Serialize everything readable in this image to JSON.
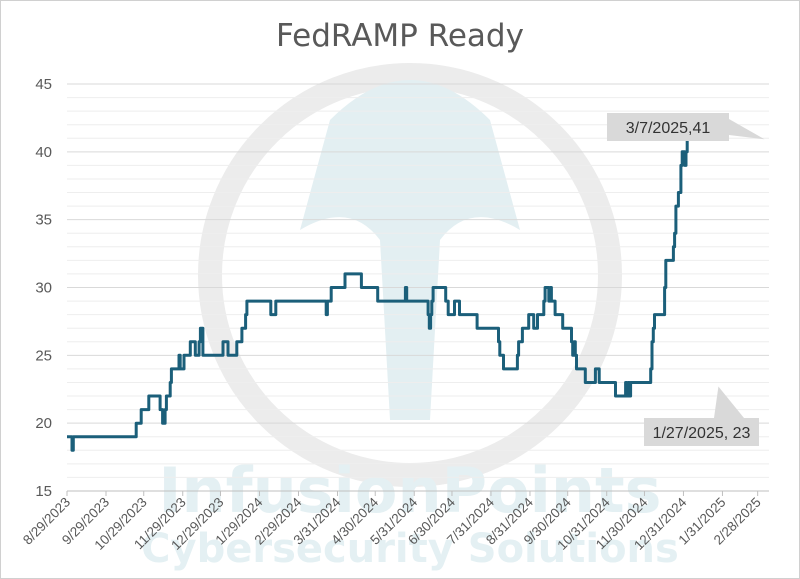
{
  "chart_data": {
    "type": "line",
    "title": "FedRAMP Ready",
    "xlabel": "",
    "ylabel": "",
    "ylim": [
      15,
      45
    ],
    "y_ticks": [
      "15",
      "20",
      "25",
      "30",
      "35",
      "40",
      "45"
    ],
    "x_range": [
      "2023-08-29",
      "2025-03-09"
    ],
    "x_ticks": [
      "8/29/2023",
      "9/29/2023",
      "10/29/2023",
      "11/29/2023",
      "12/29/2023",
      "1/29/2024",
      "2/29/2024",
      "3/31/2024",
      "4/30/2024",
      "5/31/2024",
      "6/30/2024",
      "7/31/2024",
      "8/31/2024",
      "9/30/2024",
      "10/31/2024",
      "11/30/2024",
      "12/31/2024",
      "1/31/2025",
      "2/28/2025"
    ],
    "grid": true,
    "legend": "none",
    "series": [
      {
        "color": "#1b5f7a",
        "step": true,
        "points": [
          [
            "2023-08-29",
            19
          ],
          [
            "2023-09-01",
            19
          ],
          [
            "2023-09-02",
            18
          ],
          [
            "2023-09-03",
            19
          ],
          [
            "2023-10-22",
            19
          ],
          [
            "2023-10-23",
            20
          ],
          [
            "2023-10-26",
            20
          ],
          [
            "2023-10-27",
            21
          ],
          [
            "2023-11-01",
            21
          ],
          [
            "2023-11-02",
            22
          ],
          [
            "2023-11-10",
            22
          ],
          [
            "2023-11-11",
            21
          ],
          [
            "2023-11-12",
            21
          ],
          [
            "2023-11-13",
            20
          ],
          [
            "2023-11-14",
            20
          ],
          [
            "2023-11-15",
            21
          ],
          [
            "2023-11-16",
            22
          ],
          [
            "2023-11-18",
            22
          ],
          [
            "2023-11-19",
            23
          ],
          [
            "2023-11-20",
            24
          ],
          [
            "2023-11-25",
            24
          ],
          [
            "2023-11-26",
            25
          ],
          [
            "2023-11-27",
            24
          ],
          [
            "2023-11-29",
            24
          ],
          [
            "2023-11-30",
            25
          ],
          [
            "2023-12-04",
            25
          ],
          [
            "2023-12-05",
            26
          ],
          [
            "2023-12-08",
            26
          ],
          [
            "2023-12-09",
            25
          ],
          [
            "2023-12-11",
            25
          ],
          [
            "2023-12-12",
            26
          ],
          [
            "2023-12-13",
            27
          ],
          [
            "2023-12-14",
            27
          ],
          [
            "2023-12-15",
            25
          ],
          [
            "2023-12-30",
            25
          ],
          [
            "2023-12-31",
            26
          ],
          [
            "2024-01-03",
            26
          ],
          [
            "2024-01-04",
            25
          ],
          [
            "2024-01-10",
            25
          ],
          [
            "2024-01-11",
            26
          ],
          [
            "2024-01-14",
            26
          ],
          [
            "2024-01-15",
            27
          ],
          [
            "2024-01-17",
            27
          ],
          [
            "2024-01-18",
            28
          ],
          [
            "2024-01-19",
            29
          ],
          [
            "2024-02-06",
            29
          ],
          [
            "2024-02-07",
            28
          ],
          [
            "2024-02-10",
            28
          ],
          [
            "2024-02-11",
            29
          ],
          [
            "2024-03-21",
            29
          ],
          [
            "2024-03-22",
            28
          ],
          [
            "2024-03-23",
            29
          ],
          [
            "2024-03-25",
            29
          ],
          [
            "2024-03-26",
            30
          ],
          [
            "2024-04-05",
            30
          ],
          [
            "2024-04-06",
            31
          ],
          [
            "2024-04-18",
            31
          ],
          [
            "2024-04-19",
            30
          ],
          [
            "2024-05-01",
            30
          ],
          [
            "2024-05-02",
            29
          ],
          [
            "2024-05-23",
            29
          ],
          [
            "2024-05-24",
            30
          ],
          [
            "2024-05-25",
            29
          ],
          [
            "2024-06-10",
            29
          ],
          [
            "2024-06-11",
            28
          ],
          [
            "2024-06-12",
            27
          ],
          [
            "2024-06-13",
            28
          ],
          [
            "2024-06-14",
            29
          ],
          [
            "2024-06-15",
            30
          ],
          [
            "2024-06-24",
            30
          ],
          [
            "2024-06-25",
            29
          ],
          [
            "2024-06-27",
            28
          ],
          [
            "2024-07-01",
            28
          ],
          [
            "2024-07-02",
            29
          ],
          [
            "2024-07-05",
            29
          ],
          [
            "2024-07-06",
            28
          ],
          [
            "2024-07-19",
            28
          ],
          [
            "2024-07-20",
            27
          ],
          [
            "2024-08-05",
            27
          ],
          [
            "2024-08-06",
            26
          ],
          [
            "2024-08-07",
            25
          ],
          [
            "2024-08-09",
            25
          ],
          [
            "2024-08-10",
            24
          ],
          [
            "2024-08-20",
            24
          ],
          [
            "2024-08-21",
            25
          ],
          [
            "2024-08-22",
            26
          ],
          [
            "2024-08-24",
            26
          ],
          [
            "2024-08-25",
            27
          ],
          [
            "2024-08-29",
            27
          ],
          [
            "2024-08-30",
            28
          ],
          [
            "2024-09-02",
            28
          ],
          [
            "2024-09-03",
            27
          ],
          [
            "2024-09-05",
            27
          ],
          [
            "2024-09-06",
            28
          ],
          [
            "2024-09-10",
            28
          ],
          [
            "2024-09-11",
            29
          ],
          [
            "2024-09-12",
            30
          ],
          [
            "2024-09-14",
            30
          ],
          [
            "2024-09-15",
            29
          ],
          [
            "2024-09-16",
            30
          ],
          [
            "2024-09-17",
            29
          ],
          [
            "2024-09-19",
            29
          ],
          [
            "2024-09-20",
            28
          ],
          [
            "2024-09-25",
            28
          ],
          [
            "2024-09-26",
            27
          ],
          [
            "2024-10-02",
            27
          ],
          [
            "2024-10-03",
            26
          ],
          [
            "2024-10-04",
            25
          ],
          [
            "2024-10-05",
            26
          ],
          [
            "2024-10-06",
            25
          ],
          [
            "2024-10-07",
            24
          ],
          [
            "2024-10-13",
            24
          ],
          [
            "2024-10-14",
            23
          ],
          [
            "2024-10-21",
            23
          ],
          [
            "2024-10-22",
            24
          ],
          [
            "2024-10-24",
            24
          ],
          [
            "2024-10-25",
            23
          ],
          [
            "2024-11-06",
            23
          ],
          [
            "2024-11-07",
            22
          ],
          [
            "2024-11-14",
            22
          ],
          [
            "2024-11-15",
            23
          ],
          [
            "2024-11-16",
            22
          ],
          [
            "2024-11-17",
            23
          ],
          [
            "2024-11-18",
            22
          ],
          [
            "2024-11-19",
            23
          ],
          [
            "2024-12-04",
            23
          ],
          [
            "2024-12-05",
            24
          ],
          [
            "2024-12-06",
            26
          ],
          [
            "2024-12-07",
            27
          ],
          [
            "2024-12-08",
            28
          ],
          [
            "2024-12-15",
            28
          ],
          [
            "2024-12-16",
            30
          ],
          [
            "2024-12-17",
            32
          ],
          [
            "2024-12-22",
            32
          ],
          [
            "2024-12-23",
            33
          ],
          [
            "2024-12-24",
            34
          ],
          [
            "2024-12-25",
            36
          ],
          [
            "2024-12-27",
            37
          ],
          [
            "2024-12-29",
            39
          ],
          [
            "2024-12-30",
            40
          ],
          [
            "2025-01-01",
            39
          ],
          [
            "2025-01-02",
            40
          ],
          [
            "2025-01-03",
            41
          ],
          [
            "2025-01-05",
            41
          ]
        ]
      }
    ],
    "annotations": [
      {
        "label": "3/7/2025,41",
        "x": "2025-03-07",
        "y": 41
      },
      {
        "label": "1/27/2025, 23",
        "x": "2025-01-27",
        "y": 23
      }
    ]
  },
  "watermark": {
    "company": "InfusionPoints",
    "tagline": "Cybersecurity Solutions",
    "icon": "spartan-helmet-icon"
  }
}
